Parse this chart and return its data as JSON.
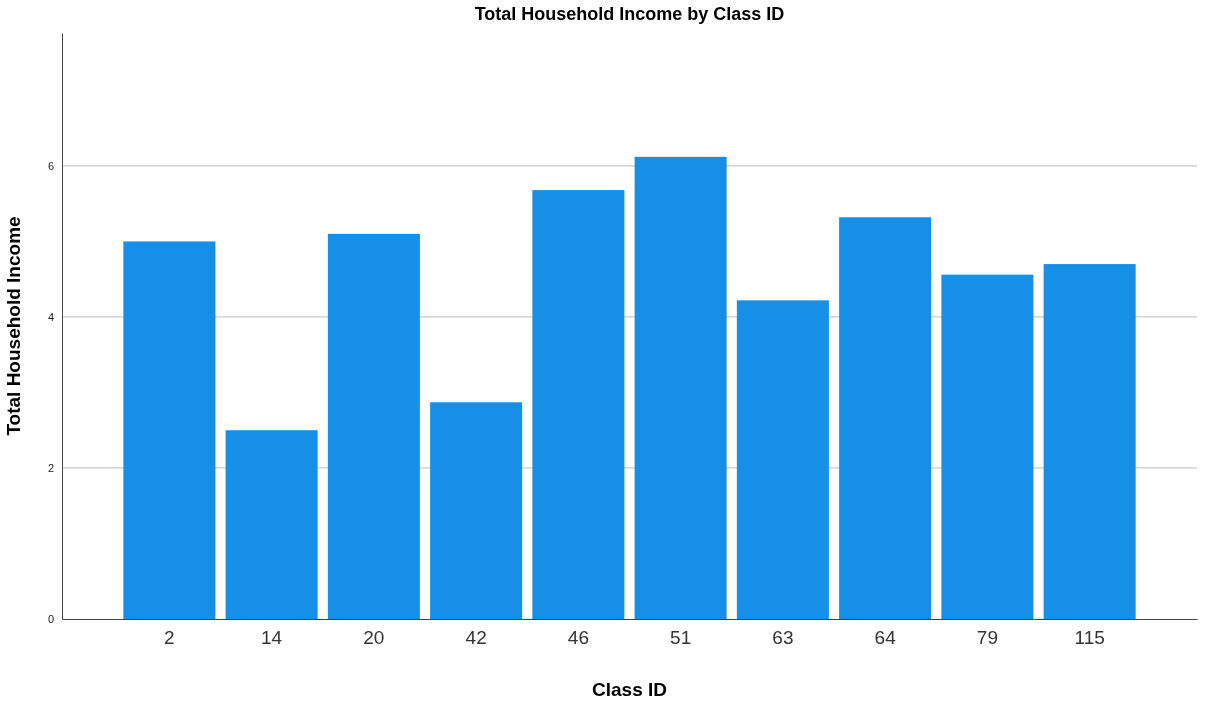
{
  "chart_data": {
    "type": "bar",
    "title": "Total Household Income by Class ID",
    "xlabel": "Class ID",
    "ylabel": "Total Household Income",
    "categories": [
      "2",
      "14",
      "20",
      "42",
      "46",
      "51",
      "63",
      "64",
      "79",
      "115"
    ],
    "values": [
      5.0,
      2.5,
      5.1,
      2.87,
      5.68,
      6.12,
      4.22,
      5.32,
      4.56,
      4.7
    ],
    "color": "#1590e6",
    "ylim": [
      0,
      7.76
    ],
    "yticks": [
      0,
      2,
      4,
      6
    ],
    "grid": "y"
  }
}
